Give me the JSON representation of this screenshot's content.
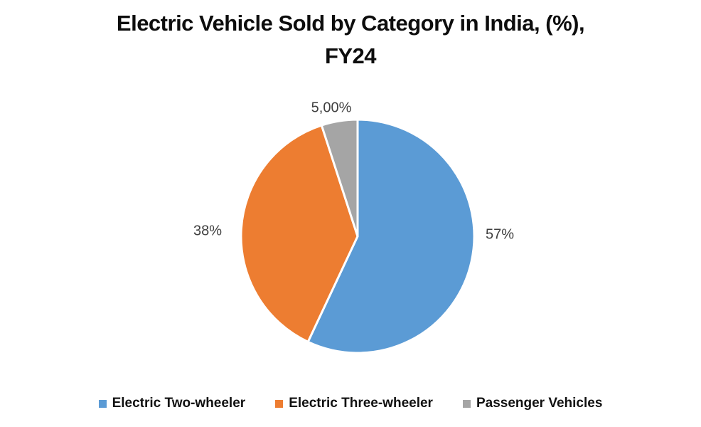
{
  "chart_data": {
    "type": "pie",
    "title": "Electric Vehicle Sold by Category in India, (%), FY24",
    "title_lines": {
      "line1": "Electric Vehicle Sold by Category in India, (%),",
      "line2": "FY24"
    },
    "categories": [
      "Electric Two-wheeler",
      "Electric Three-wheeler",
      "Passenger Vehicles"
    ],
    "values": [
      57,
      38,
      5
    ],
    "display_labels": [
      "57%",
      "38%",
      "5,00%"
    ],
    "colors": [
      "#5B9BD5",
      "#ED7D31",
      "#A5A5A5"
    ],
    "slice_border_color": "#FFFFFF",
    "label_color": "#404040",
    "start_angle_deg": 0,
    "direction": "clockwise",
    "legend_position": "bottom",
    "legend": [
      {
        "label": "Electric Two-wheeler",
        "color": "#5B9BD5"
      },
      {
        "label": "Electric Three-wheeler",
        "color": "#ED7D31"
      },
      {
        "label": "Passenger Vehicles",
        "color": "#A5A5A5"
      }
    ]
  }
}
